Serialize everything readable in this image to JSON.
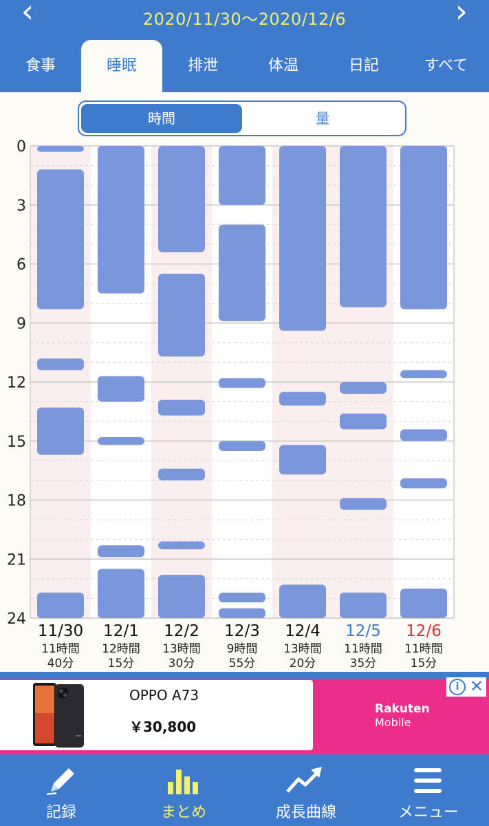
{
  "header": {
    "date_range": "2020/11/30〜2020/12/6",
    "tabs": [
      {
        "label": "食事",
        "active": false
      },
      {
        "label": "睡眠",
        "active": true
      },
      {
        "label": "排泄",
        "active": false
      },
      {
        "label": "体温",
        "active": false
      },
      {
        "label": "日記",
        "active": false
      },
      {
        "label": "すべて",
        "active": false
      }
    ]
  },
  "toggle": {
    "time_label": "時間",
    "amount_label": "量",
    "selected": "time"
  },
  "chart_data": {
    "type": "bar",
    "y_ticks": [
      "0",
      "3",
      "6",
      "9",
      "12",
      "15",
      "18",
      "21",
      "24"
    ],
    "y_range": [
      0,
      24
    ],
    "bar_color": "#7b97dc",
    "days": [
      {
        "date": "11/30",
        "total_line1": "11時間",
        "total_line2": "40分",
        "color": "#111111",
        "shaded": true,
        "segments": [
          [
            0,
            0.3
          ],
          [
            1.2,
            8.3
          ],
          [
            10.8,
            11.4
          ],
          [
            13.3,
            15.7
          ],
          [
            22.7,
            24
          ]
        ]
      },
      {
        "date": "12/1",
        "total_line1": "12時間",
        "total_line2": "15分",
        "color": "#111111",
        "shaded": false,
        "segments": [
          [
            0,
            7.5
          ],
          [
            11.7,
            13
          ],
          [
            14.8,
            15.2
          ],
          [
            20.3,
            20.9
          ],
          [
            21.5,
            24
          ]
        ]
      },
      {
        "date": "12/2",
        "total_line1": "13時間",
        "total_line2": "30分",
        "color": "#111111",
        "shaded": true,
        "segments": [
          [
            0,
            5.4
          ],
          [
            6.5,
            10.7
          ],
          [
            12.9,
            13.7
          ],
          [
            16.4,
            17
          ],
          [
            20.1,
            20.5
          ],
          [
            21.8,
            24
          ]
        ]
      },
      {
        "date": "12/3",
        "total_line1": "9時間",
        "total_line2": "55分",
        "color": "#111111",
        "shaded": false,
        "segments": [
          [
            0,
            3
          ],
          [
            4,
            8.9
          ],
          [
            11.8,
            12.3
          ],
          [
            15,
            15.5
          ],
          [
            22.7,
            23.2
          ],
          [
            23.5,
            24
          ]
        ]
      },
      {
        "date": "12/4",
        "total_line1": "13時間",
        "total_line2": "20分",
        "color": "#111111",
        "shaded": true,
        "segments": [
          [
            0,
            9.4
          ],
          [
            12.5,
            13.2
          ],
          [
            15.2,
            16.7
          ],
          [
            22.3,
            24
          ]
        ]
      },
      {
        "date": "12/5",
        "total_line1": "11時間",
        "total_line2": "35分",
        "color": "#3e7bcd",
        "shaded": true,
        "segments": [
          [
            0,
            8.2
          ],
          [
            12,
            12.6
          ],
          [
            13.6,
            14.4
          ],
          [
            17.9,
            18.5
          ],
          [
            22.7,
            24
          ]
        ]
      },
      {
        "date": "12/6",
        "total_line1": "11時間",
        "total_line2": "15分",
        "color": "#e0303a",
        "shaded": false,
        "segments": [
          [
            0,
            8.3
          ],
          [
            11.4,
            11.8
          ],
          [
            14.4,
            15
          ],
          [
            16.9,
            17.4
          ],
          [
            22.5,
            24
          ]
        ]
      }
    ]
  },
  "ad": {
    "product": "OPPO A73",
    "price": "￥30,800",
    "brand_line1": "Rakuten",
    "brand_line2": "Mobile",
    "info_icon": "i",
    "close_icon": "✕"
  },
  "bottom_nav": [
    {
      "label": "記録",
      "icon": "pencil-icon",
      "active": false
    },
    {
      "label": "まとめ",
      "icon": "bar-chart-icon",
      "active": true
    },
    {
      "label": "成長曲線",
      "icon": "trend-up-icon",
      "active": false
    },
    {
      "label": "メニュー",
      "icon": "menu-icon",
      "active": false
    }
  ]
}
